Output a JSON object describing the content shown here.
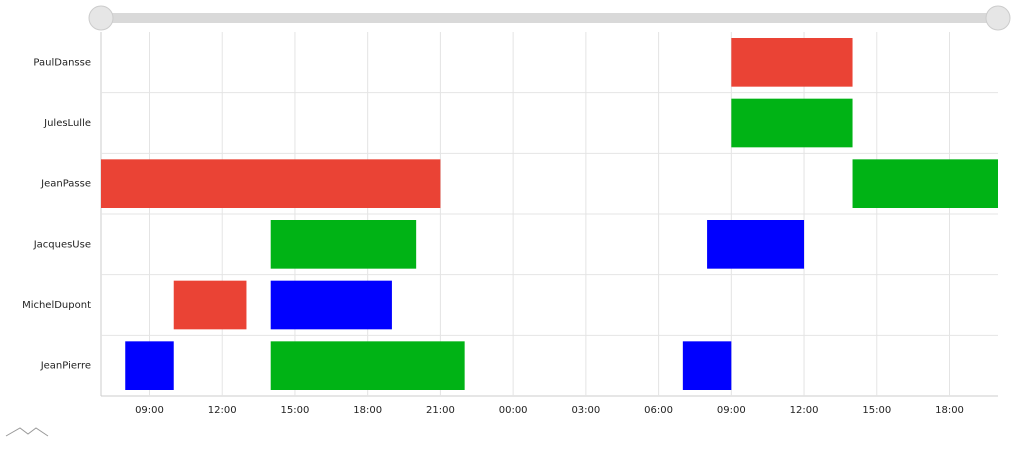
{
  "chart_data": {
    "type": "gantt",
    "rows": [
      {
        "name": "PaulDansse",
        "tasks": [
          {
            "start": 33,
            "end": 38,
            "color": "#ea4335"
          }
        ]
      },
      {
        "name": "JulesLulle",
        "tasks": [
          {
            "start": 33,
            "end": 38,
            "color": "#00b315"
          }
        ]
      },
      {
        "name": "JeanPasse",
        "tasks": [
          {
            "start": 7,
            "end": 21,
            "color": "#ea4335"
          },
          {
            "start": 38,
            "end": 44,
            "color": "#00b315"
          }
        ]
      },
      {
        "name": "JacquesUse",
        "tasks": [
          {
            "start": 14,
            "end": 20,
            "color": "#00b315"
          },
          {
            "start": 32,
            "end": 36,
            "color": "#0000ff"
          }
        ]
      },
      {
        "name": "MichelDupont",
        "tasks": [
          {
            "start": 10,
            "end": 13,
            "color": "#ea4335"
          },
          {
            "start": 14,
            "end": 19,
            "color": "#0000ff"
          }
        ]
      },
      {
        "name": "JeanPierre",
        "tasks": [
          {
            "start": 8,
            "end": 10,
            "color": "#0000ff"
          },
          {
            "start": 14,
            "end": 22,
            "color": "#00b315"
          },
          {
            "start": 31,
            "end": 33,
            "color": "#0000ff"
          }
        ]
      }
    ],
    "xlim": [
      7,
      44
    ],
    "xticks": [
      {
        "value": 9,
        "label": "09:00"
      },
      {
        "value": 12,
        "label": "12:00"
      },
      {
        "value": 15,
        "label": "15:00"
      },
      {
        "value": 18,
        "label": "18:00"
      },
      {
        "value": 21,
        "label": "21:00"
      },
      {
        "value": 24,
        "label": "00:00"
      },
      {
        "value": 27,
        "label": "03:00"
      },
      {
        "value": 30,
        "label": "06:00"
      },
      {
        "value": 33,
        "label": "09:00"
      },
      {
        "value": 36,
        "label": "12:00"
      },
      {
        "value": 39,
        "label": "15:00"
      },
      {
        "value": 42,
        "label": "18:00"
      }
    ],
    "grid": true
  }
}
